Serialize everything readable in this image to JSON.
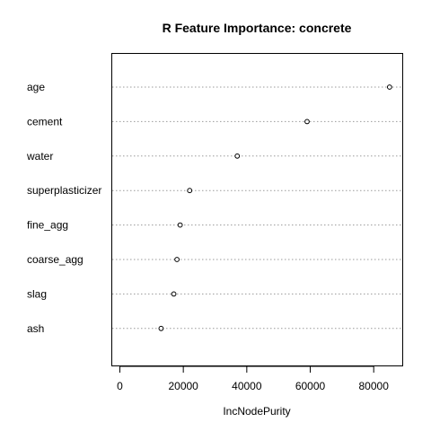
{
  "chart_data": {
    "type": "scatter",
    "title": "R Feature Importance: concrete",
    "xlabel": "IncNodePurity",
    "ylabel": "",
    "categories": [
      "age",
      "cement",
      "water",
      "superplasticizer",
      "fine_agg",
      "coarse_agg",
      "slag",
      "ash"
    ],
    "values": [
      85000,
      59000,
      37000,
      22000,
      19000,
      18000,
      17000,
      13000
    ],
    "xticks": [
      0,
      20000,
      40000,
      60000,
      80000
    ],
    "xlim": [
      -2400,
      89000
    ],
    "grid": "horizontal dotted",
    "marker": "open-circle"
  }
}
